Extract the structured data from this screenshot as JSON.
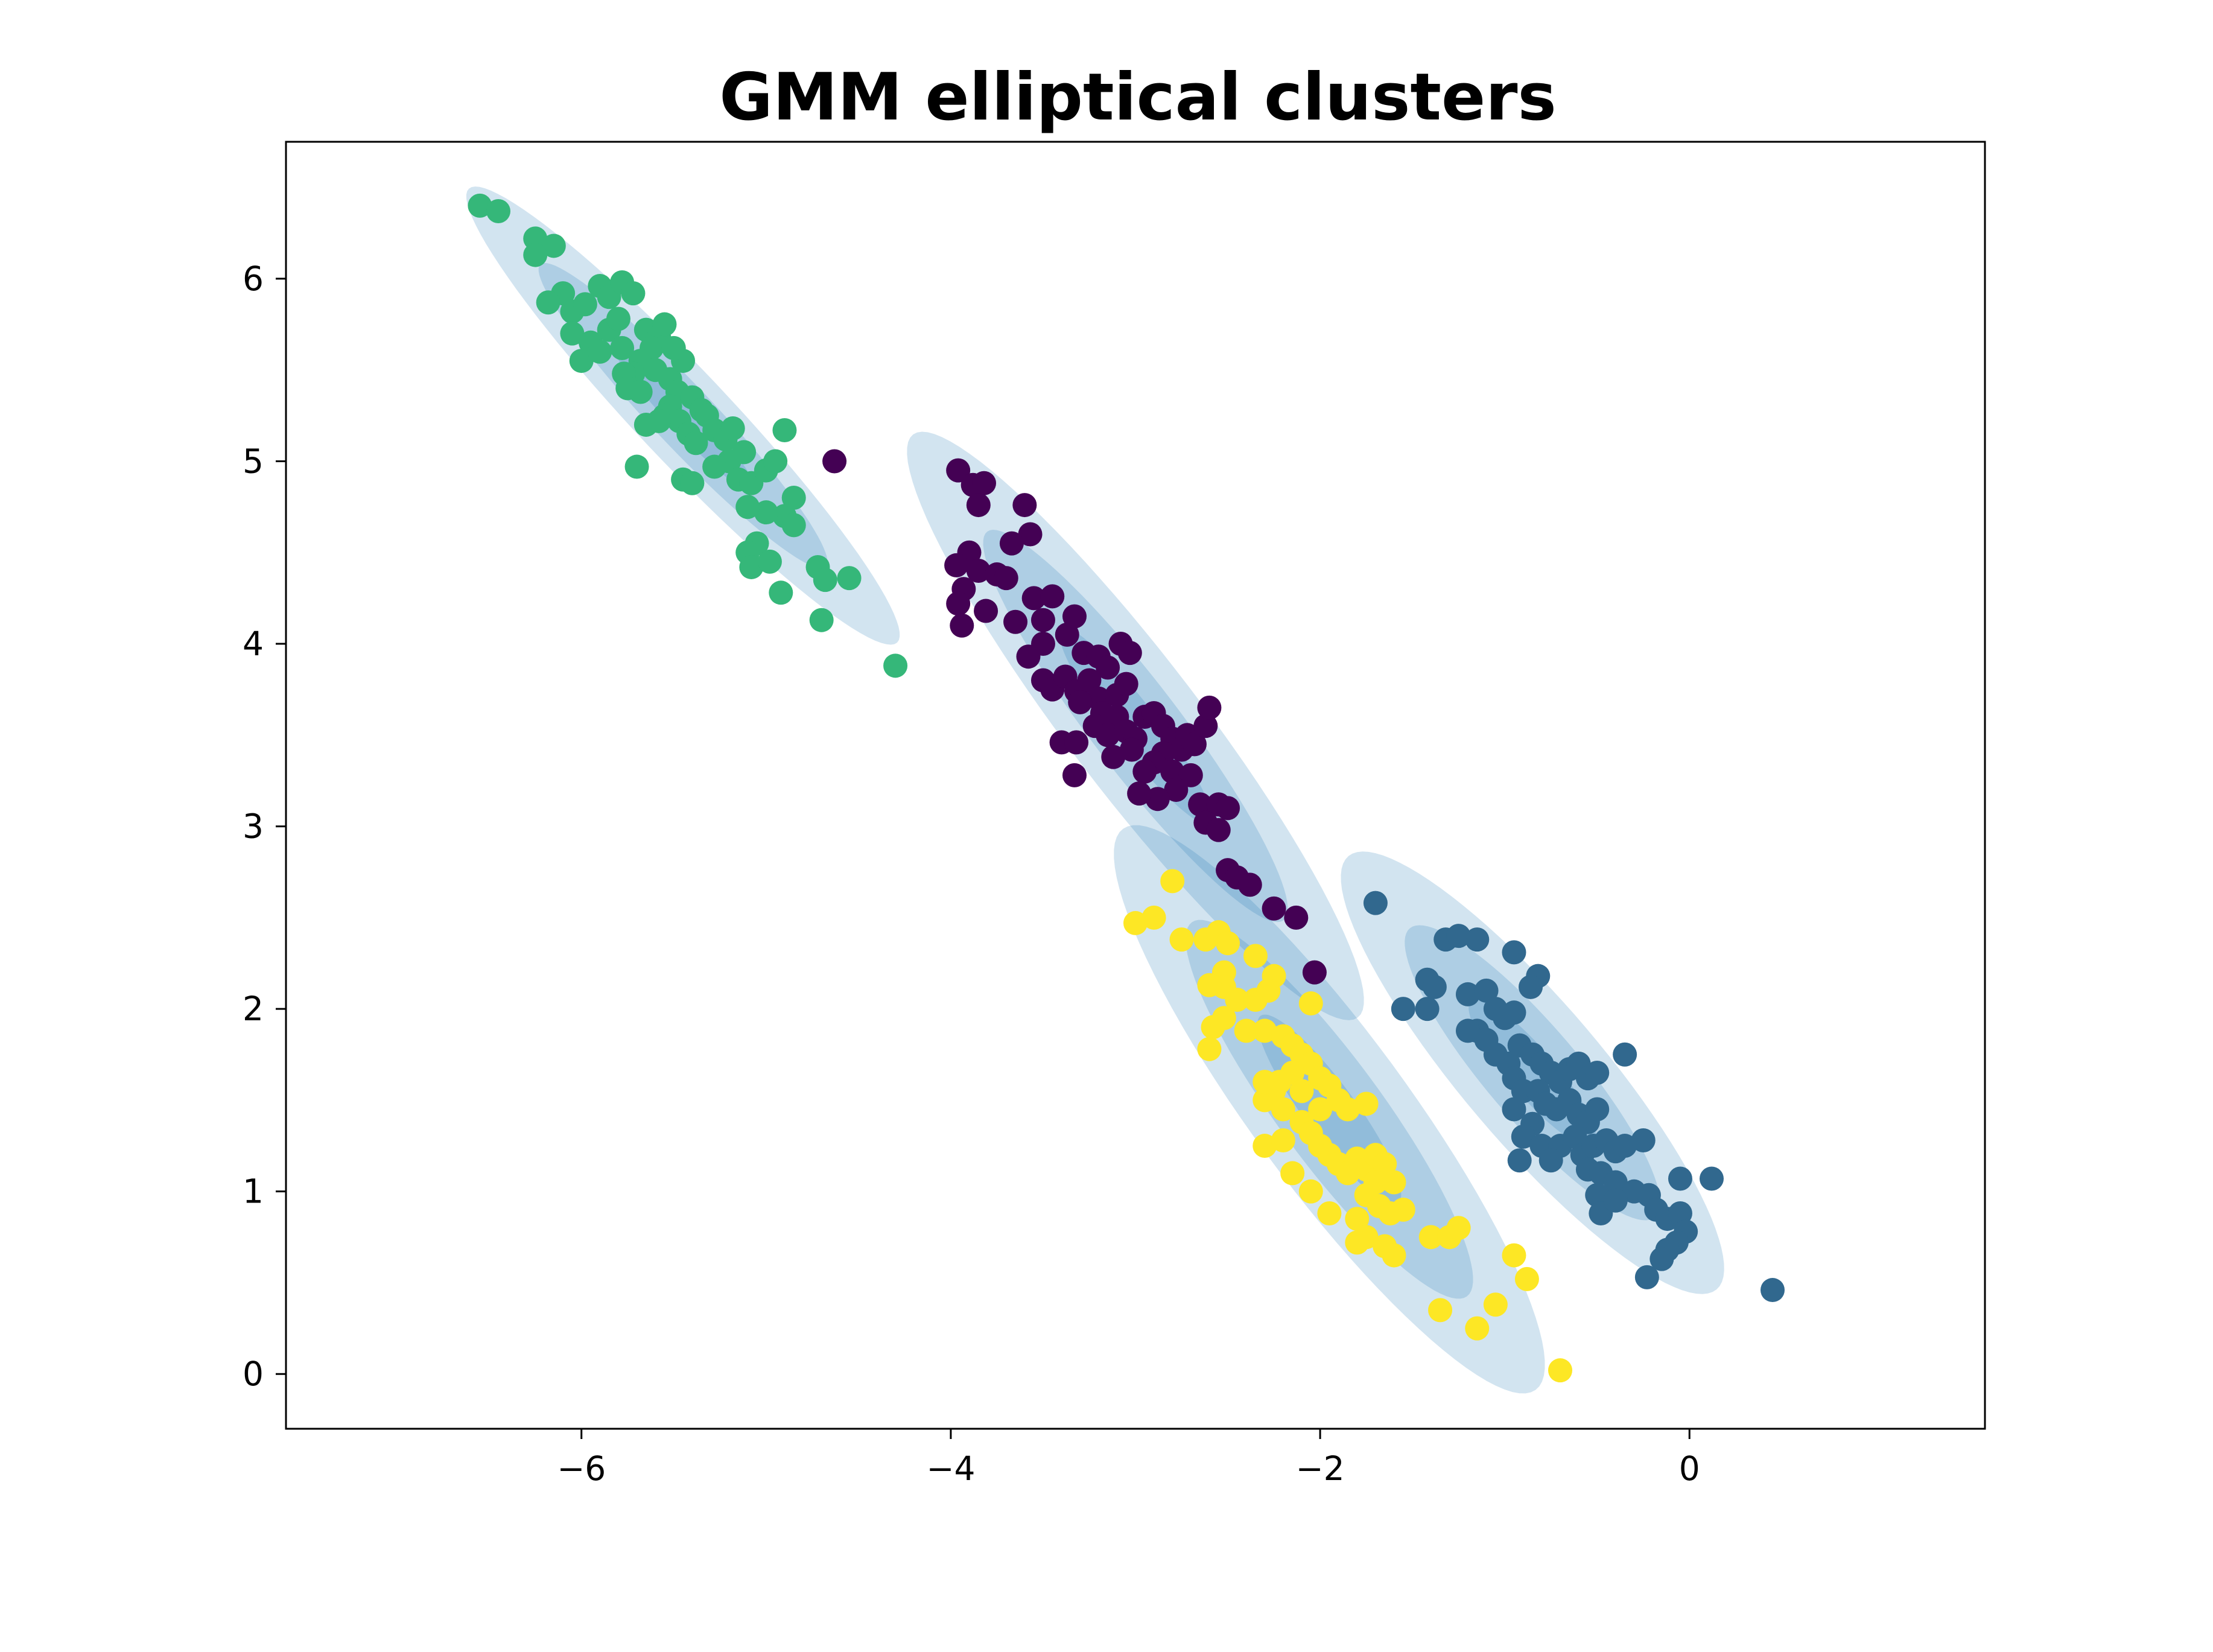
{
  "chart_data": {
    "type": "scatter",
    "title": "GMM elliptical clusters",
    "xlabel": "",
    "ylabel": "",
    "xlim": [
      -7.6,
      1.6
    ],
    "ylim": [
      -0.3,
      6.75
    ],
    "x_ticks": [
      {
        "value": -6,
        "label": "−6"
      },
      {
        "value": -4,
        "label": "−4"
      },
      {
        "value": -2,
        "label": "−2"
      },
      {
        "value": 0,
        "label": "0"
      }
    ],
    "y_ticks": [
      {
        "value": 0,
        "label": "0"
      },
      {
        "value": 1,
        "label": "1"
      },
      {
        "value": 2,
        "label": "2"
      },
      {
        "value": 3,
        "label": "3"
      },
      {
        "value": 4,
        "label": "4"
      },
      {
        "value": 5,
        "label": "5"
      },
      {
        "value": 6,
        "label": "6"
      }
    ],
    "grid": false,
    "legend": "none",
    "ellipse_color": "#1f77b4",
    "ellipse_opacity": 0.2,
    "clusters": [
      {
        "color": "#440154",
        "mean": [
          -3.0,
          3.55
        ],
        "angle_deg": -53,
        "axes": [
          2.0,
          0.36
        ],
        "points": [
          [
            -4.63,
            5.0
          ],
          [
            -3.96,
            4.95
          ],
          [
            -3.88,
            4.87
          ],
          [
            -3.82,
            4.88
          ],
          [
            -3.85,
            4.76
          ],
          [
            -3.6,
            4.76
          ],
          [
            -3.57,
            4.6
          ],
          [
            -3.67,
            4.55
          ],
          [
            -3.9,
            4.5
          ],
          [
            -3.97,
            4.43
          ],
          [
            -3.85,
            4.4
          ],
          [
            -3.75,
            4.38
          ],
          [
            -3.7,
            4.36
          ],
          [
            -3.93,
            4.3
          ],
          [
            -3.96,
            4.22
          ],
          [
            -3.81,
            4.18
          ],
          [
            -3.94,
            4.1
          ],
          [
            -3.65,
            4.12
          ],
          [
            -3.55,
            4.25
          ],
          [
            -3.45,
            4.26
          ],
          [
            -3.5,
            4.13
          ],
          [
            -3.5,
            4.0
          ],
          [
            -3.37,
            4.05
          ],
          [
            -3.33,
            4.15
          ],
          [
            -3.28,
            3.95
          ],
          [
            -3.2,
            3.93
          ],
          [
            -3.15,
            3.87
          ],
          [
            -3.08,
            4.0
          ],
          [
            -3.03,
            3.95
          ],
          [
            -3.58,
            3.93
          ],
          [
            -3.5,
            3.8
          ],
          [
            -3.45,
            3.75
          ],
          [
            -3.38,
            3.82
          ],
          [
            -3.32,
            3.74
          ],
          [
            -3.25,
            3.8
          ],
          [
            -3.2,
            3.7
          ],
          [
            -3.1,
            3.72
          ],
          [
            -3.05,
            3.78
          ],
          [
            -3.1,
            3.6
          ],
          [
            -3.18,
            3.62
          ],
          [
            -3.3,
            3.68
          ],
          [
            -3.22,
            3.55
          ],
          [
            -3.15,
            3.5
          ],
          [
            -3.05,
            3.52
          ],
          [
            -3.0,
            3.48
          ],
          [
            -2.95,
            3.6
          ],
          [
            -2.9,
            3.62
          ],
          [
            -2.85,
            3.55
          ],
          [
            -2.8,
            3.48
          ],
          [
            -2.75,
            3.42
          ],
          [
            -2.72,
            3.5
          ],
          [
            -2.68,
            3.45
          ],
          [
            -2.62,
            3.55
          ],
          [
            -2.6,
            3.65
          ],
          [
            -2.85,
            3.4
          ],
          [
            -2.9,
            3.35
          ],
          [
            -2.95,
            3.3
          ],
          [
            -2.8,
            3.3
          ],
          [
            -2.7,
            3.28
          ],
          [
            -2.65,
            3.12
          ],
          [
            -2.55,
            3.12
          ],
          [
            -2.5,
            3.1
          ],
          [
            -2.78,
            3.2
          ],
          [
            -2.88,
            3.15
          ],
          [
            -2.98,
            3.18
          ],
          [
            -2.62,
            3.02
          ],
          [
            -2.55,
            2.98
          ],
          [
            -2.5,
            2.76
          ],
          [
            -2.45,
            2.72
          ],
          [
            -2.38,
            2.68
          ],
          [
            -2.25,
            2.55
          ],
          [
            -2.13,
            2.5
          ],
          [
            -2.03,
            2.2
          ],
          [
            -3.33,
            3.28
          ],
          [
            -3.4,
            3.46
          ],
          [
            -3.32,
            3.46
          ],
          [
            -3.12,
            3.38
          ],
          [
            -3.02,
            3.42
          ]
        ]
      },
      {
        "color": "#31688e",
        "mean": [
          -0.85,
          1.65
        ],
        "angle_deg": -50,
        "axes": [
          1.55,
          0.38
        ],
        "points": [
          [
            -1.7,
            2.58
          ],
          [
            -1.42,
            2.16
          ],
          [
            -1.55,
            2.0
          ],
          [
            -1.42,
            2.0
          ],
          [
            -1.32,
            2.38
          ],
          [
            -1.25,
            2.4
          ],
          [
            -1.15,
            2.38
          ],
          [
            -0.95,
            2.31
          ],
          [
            -0.82,
            2.18
          ],
          [
            -0.86,
            2.12
          ],
          [
            -1.38,
            2.12
          ],
          [
            -1.2,
            2.08
          ],
          [
            -1.1,
            2.1
          ],
          [
            -1.05,
            2.0
          ],
          [
            -1.0,
            1.95
          ],
          [
            -0.95,
            1.98
          ],
          [
            -1.15,
            1.88
          ],
          [
            -1.2,
            1.88
          ],
          [
            -1.1,
            1.83
          ],
          [
            -1.05,
            1.75
          ],
          [
            -0.98,
            1.7
          ],
          [
            -0.92,
            1.8
          ],
          [
            -0.85,
            1.75
          ],
          [
            -0.8,
            1.7
          ],
          [
            -0.75,
            1.65
          ],
          [
            -0.7,
            1.6
          ],
          [
            -0.65,
            1.67
          ],
          [
            -0.6,
            1.7
          ],
          [
            -0.55,
            1.62
          ],
          [
            -0.5,
            1.65
          ],
          [
            -0.95,
            1.62
          ],
          [
            -0.9,
            1.55
          ],
          [
            -0.82,
            1.55
          ],
          [
            -0.78,
            1.48
          ],
          [
            -0.72,
            1.45
          ],
          [
            -0.65,
            1.5
          ],
          [
            -0.6,
            1.42
          ],
          [
            -0.55,
            1.38
          ],
          [
            -0.5,
            1.45
          ],
          [
            -0.35,
            1.75
          ],
          [
            -0.95,
            1.45
          ],
          [
            -0.85,
            1.37
          ],
          [
            -0.9,
            1.3
          ],
          [
            -0.8,
            1.25
          ],
          [
            -0.7,
            1.25
          ],
          [
            -0.62,
            1.3
          ],
          [
            -0.58,
            1.2
          ],
          [
            -0.52,
            1.25
          ],
          [
            -0.45,
            1.28
          ],
          [
            -0.4,
            1.22
          ],
          [
            -0.35,
            1.25
          ],
          [
            -0.25,
            1.28
          ],
          [
            -0.55,
            1.12
          ],
          [
            -0.48,
            1.1
          ],
          [
            -0.4,
            1.05
          ],
          [
            -0.3,
            1.0
          ],
          [
            -0.22,
            0.98
          ],
          [
            -0.18,
            0.9
          ],
          [
            -0.12,
            0.85
          ],
          [
            -0.05,
            0.88
          ],
          [
            -0.02,
            0.78
          ],
          [
            -0.07,
            0.72
          ],
          [
            -0.12,
            0.68
          ],
          [
            -0.15,
            0.63
          ],
          [
            -0.05,
            1.07
          ],
          [
            0.12,
            1.07
          ],
          [
            -0.92,
            1.17
          ],
          [
            -0.75,
            1.17
          ],
          [
            -0.5,
            0.98
          ],
          [
            -0.48,
            0.88
          ],
          [
            -0.4,
            0.95
          ],
          [
            -0.23,
            0.53
          ],
          [
            0.45,
            0.46
          ]
        ]
      },
      {
        "color": "#35b779",
        "mean": [
          -5.45,
          5.25
        ],
        "angle_deg": -47,
        "axes": [
          1.7,
          0.25
        ],
        "points": [
          [
            -6.55,
            6.4
          ],
          [
            -6.45,
            6.37
          ],
          [
            -6.25,
            6.22
          ],
          [
            -6.15,
            6.18
          ],
          [
            -6.25,
            6.13
          ],
          [
            -6.1,
            5.92
          ],
          [
            -6.18,
            5.87
          ],
          [
            -6.05,
            5.82
          ],
          [
            -5.98,
            5.86
          ],
          [
            -5.9,
            5.96
          ],
          [
            -5.85,
            5.9
          ],
          [
            -5.78,
            5.98
          ],
          [
            -5.72,
            5.92
          ],
          [
            -5.65,
            5.72
          ],
          [
            -5.58,
            5.68
          ],
          [
            -5.55,
            5.75
          ],
          [
            -5.62,
            5.62
          ],
          [
            -5.68,
            5.55
          ],
          [
            -5.72,
            5.48
          ],
          [
            -5.77,
            5.48
          ],
          [
            -5.6,
            5.5
          ],
          [
            -5.52,
            5.45
          ],
          [
            -5.48,
            5.38
          ],
          [
            -5.52,
            5.3
          ],
          [
            -5.55,
            5.25
          ],
          [
            -5.47,
            5.22
          ],
          [
            -5.4,
            5.35
          ],
          [
            -5.35,
            5.28
          ],
          [
            -5.32,
            5.25
          ],
          [
            -5.42,
            5.15
          ],
          [
            -5.38,
            5.1
          ],
          [
            -5.28,
            5.17
          ],
          [
            -5.22,
            5.12
          ],
          [
            -5.18,
            5.18
          ],
          [
            -5.12,
            5.05
          ],
          [
            -5.2,
            5.0
          ],
          [
            -5.28,
            4.97
          ],
          [
            -5.15,
            4.9
          ],
          [
            -5.08,
            4.88
          ],
          [
            -5.0,
            4.95
          ],
          [
            -4.95,
            5.0
          ],
          [
            -4.85,
            4.8
          ],
          [
            -4.9,
            4.7
          ],
          [
            -5.0,
            4.72
          ],
          [
            -5.1,
            4.75
          ],
          [
            -4.85,
            4.65
          ],
          [
            -5.05,
            4.55
          ],
          [
            -5.1,
            4.5
          ],
          [
            -5.08,
            4.42
          ],
          [
            -4.98,
            4.45
          ],
          [
            -4.92,
            4.28
          ],
          [
            -4.9,
            5.17
          ],
          [
            -4.72,
            4.42
          ],
          [
            -4.68,
            4.35
          ],
          [
            -4.55,
            4.36
          ],
          [
            -4.7,
            4.13
          ],
          [
            -4.3,
            3.88
          ],
          [
            -6.05,
            5.7
          ],
          [
            -5.95,
            5.65
          ],
          [
            -5.85,
            5.72
          ],
          [
            -5.78,
            5.62
          ],
          [
            -5.75,
            5.4
          ],
          [
            -5.68,
            5.38
          ],
          [
            -5.65,
            5.2
          ],
          [
            -5.58,
            5.22
          ],
          [
            -5.45,
            4.9
          ],
          [
            -5.4,
            4.88
          ],
          [
            -5.7,
            4.97
          ],
          [
            -6.0,
            5.55
          ],
          [
            -5.9,
            5.6
          ],
          [
            -5.45,
            5.55
          ],
          [
            -5.5,
            5.62
          ],
          [
            -5.8,
            5.78
          ]
        ]
      },
      {
        "color": "#fde725",
        "mean": [
          -1.95,
          1.45
        ],
        "angle_deg": -54,
        "axes": [
          1.9,
          0.42
        ],
        "points": [
          [
            -2.8,
            2.7
          ],
          [
            -2.9,
            2.5
          ],
          [
            -3.0,
            2.47
          ],
          [
            -2.75,
            2.38
          ],
          [
            -2.62,
            2.38
          ],
          [
            -2.55,
            2.42
          ],
          [
            -2.5,
            2.36
          ],
          [
            -2.35,
            2.29
          ],
          [
            -2.25,
            2.18
          ],
          [
            -2.52,
            2.2
          ],
          [
            -2.52,
            2.12
          ],
          [
            -2.6,
            2.13
          ],
          [
            -2.45,
            2.05
          ],
          [
            -2.35,
            2.05
          ],
          [
            -2.28,
            2.1
          ],
          [
            -2.05,
            2.03
          ],
          [
            -2.52,
            1.95
          ],
          [
            -2.58,
            1.9
          ],
          [
            -2.6,
            1.78
          ],
          [
            -2.4,
            1.88
          ],
          [
            -2.3,
            1.88
          ],
          [
            -2.2,
            1.85
          ],
          [
            -2.15,
            1.8
          ],
          [
            -2.1,
            1.75
          ],
          [
            -2.05,
            1.7
          ],
          [
            -2.0,
            1.62
          ],
          [
            -1.95,
            1.58
          ],
          [
            -1.9,
            1.5
          ],
          [
            -2.15,
            1.65
          ],
          [
            -2.22,
            1.6
          ],
          [
            -2.25,
            1.55
          ],
          [
            -2.3,
            1.5
          ],
          [
            -2.2,
            1.45
          ],
          [
            -2.1,
            1.38
          ],
          [
            -2.05,
            1.32
          ],
          [
            -2.0,
            1.25
          ],
          [
            -1.95,
            1.2
          ],
          [
            -1.9,
            1.15
          ],
          [
            -1.85,
            1.1
          ],
          [
            -1.8,
            1.18
          ],
          [
            -1.75,
            1.12
          ],
          [
            -1.7,
            1.2
          ],
          [
            -1.65,
            1.15
          ],
          [
            -1.7,
            1.05
          ],
          [
            -1.75,
            0.98
          ],
          [
            -1.68,
            0.92
          ],
          [
            -1.62,
            0.88
          ],
          [
            -1.55,
            0.9
          ],
          [
            -1.8,
            0.85
          ],
          [
            -1.75,
            0.75
          ],
          [
            -1.65,
            0.7
          ],
          [
            -1.6,
            0.65
          ],
          [
            -1.4,
            0.75
          ],
          [
            -1.3,
            0.75
          ],
          [
            -1.25,
            0.8
          ],
          [
            -1.35,
            0.35
          ],
          [
            -1.15,
            0.25
          ],
          [
            -1.05,
            0.38
          ],
          [
            -0.95,
            0.65
          ],
          [
            -0.88,
            0.52
          ],
          [
            -0.7,
            0.02
          ],
          [
            -2.3,
            1.25
          ],
          [
            -2.2,
            1.28
          ],
          [
            -2.15,
            1.1
          ],
          [
            -2.05,
            1.0
          ],
          [
            -1.95,
            0.88
          ],
          [
            -1.85,
            1.45
          ],
          [
            -1.75,
            1.48
          ],
          [
            -2.0,
            1.45
          ],
          [
            -2.1,
            1.55
          ],
          [
            -1.6,
            1.05
          ],
          [
            -1.8,
            0.72
          ],
          [
            -2.3,
            1.6
          ]
        ]
      }
    ]
  }
}
